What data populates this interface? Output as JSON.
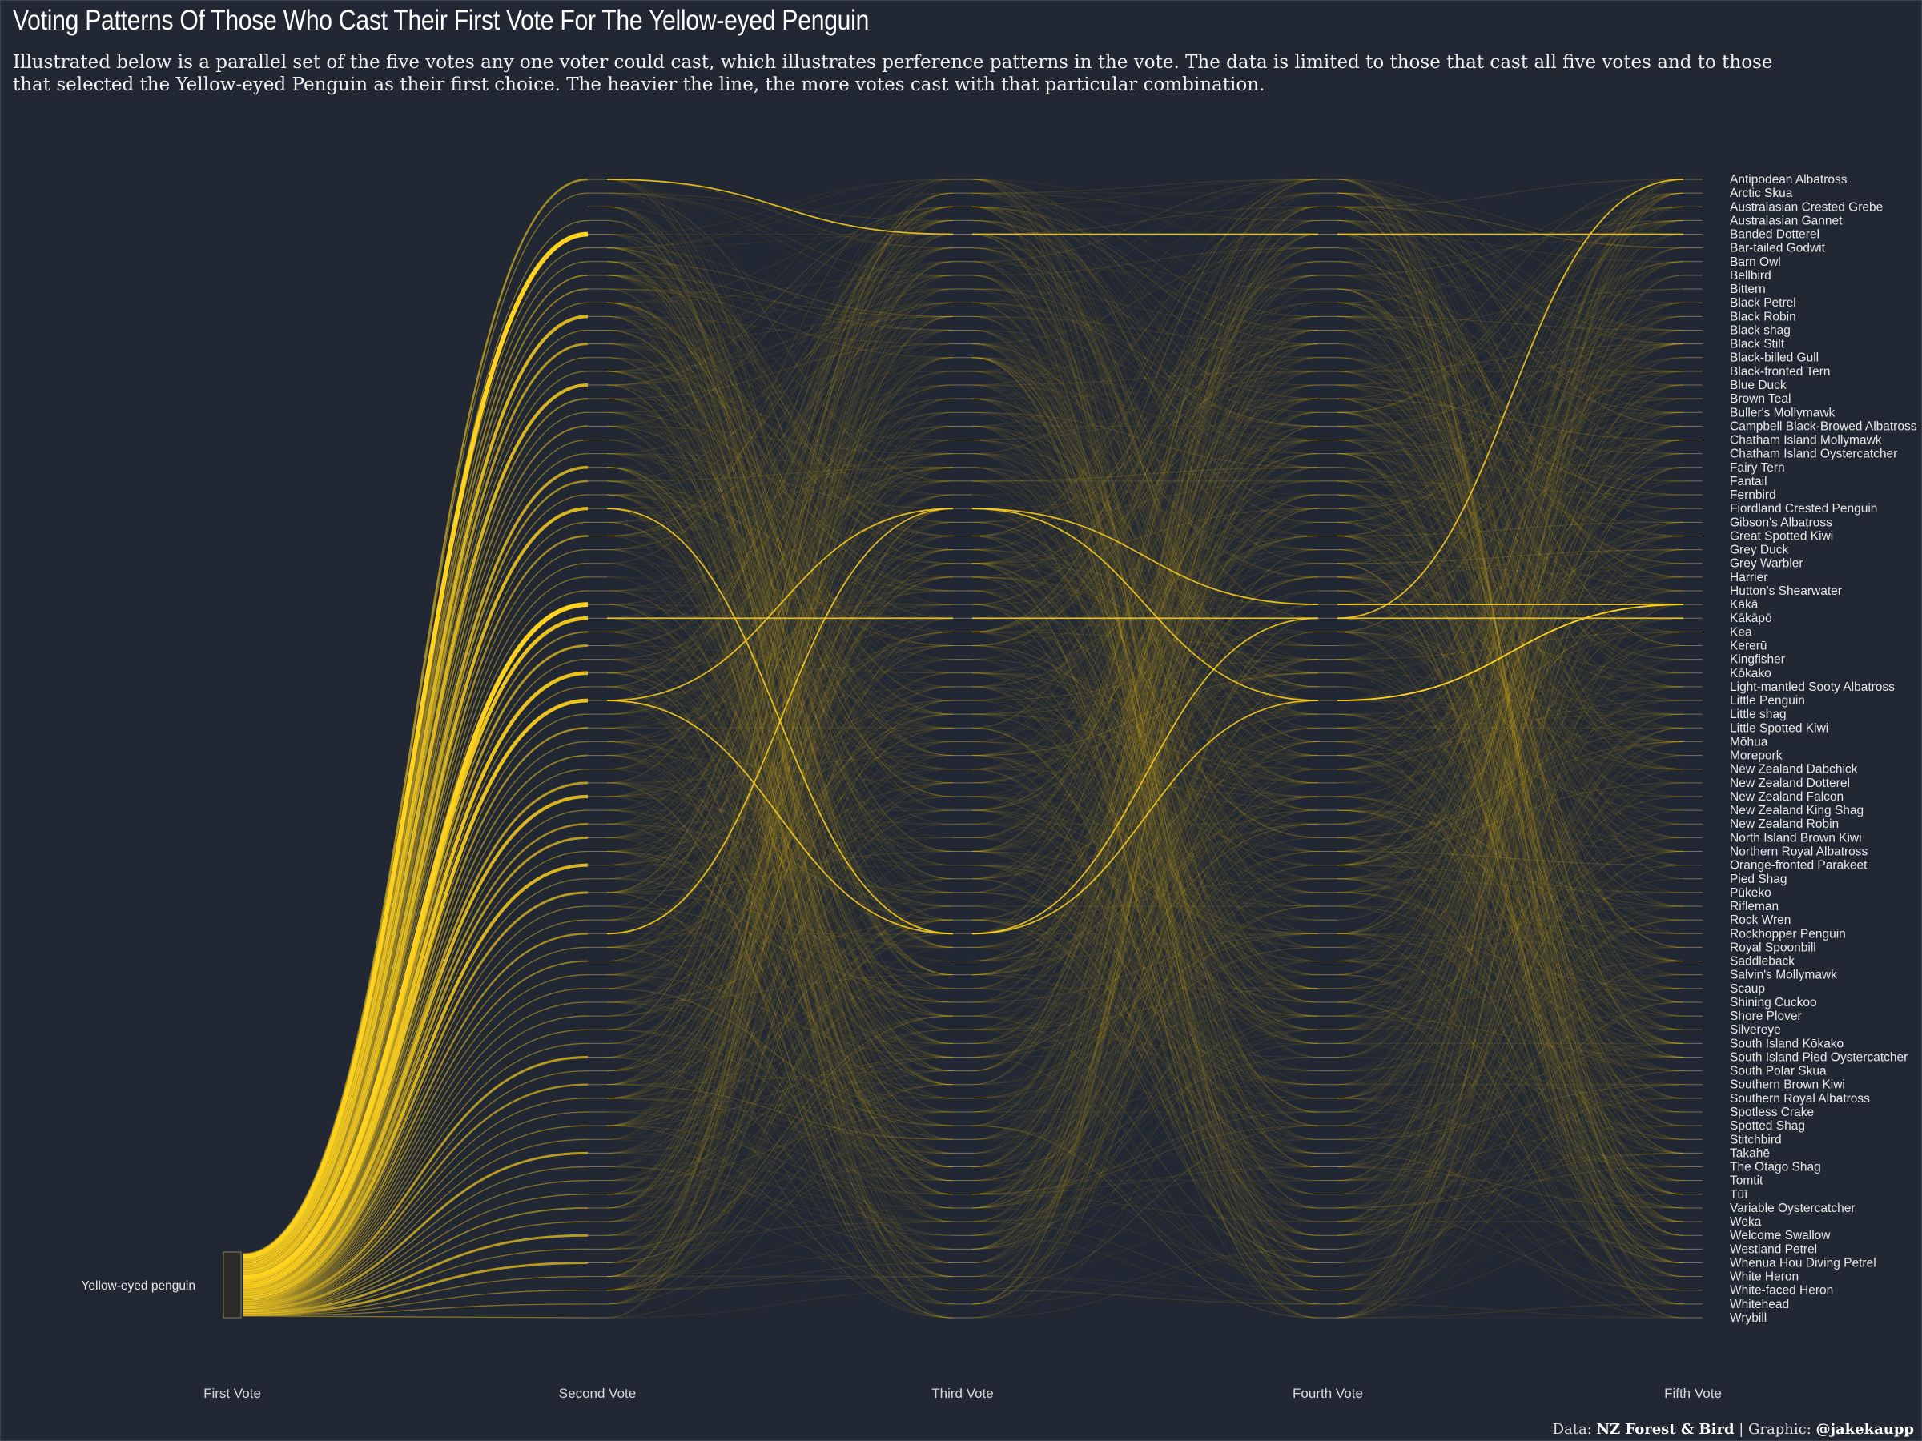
{
  "title": "Voting Patterns Of Those Who Cast Their First Vote For The Yellow-eyed Penguin",
  "subtitle": "Illustrated below is a parallel set of the five votes any one voter could cast, which illustrates perference patterns in the vote. The data is limited to those that cast all five votes and to those that selected the Yellow-eyed Penguin as their first choice. The heavier the line, the more votes cast with that particular combination.",
  "caption": {
    "data_prefix": "Data: ",
    "data_source": "NZ Forest & Bird",
    "separator": " | Graphic: ",
    "author": "@jakekaupp"
  },
  "colors": {
    "background": "#222833",
    "flow": "#f5c518",
    "flow_strong": "#ffd21f"
  },
  "chart_data": {
    "type": "parallel-sets",
    "title": "Voting Patterns Of Those Who Cast Their First Vote For The Yellow-eyed Penguin",
    "axes": [
      "First Vote",
      "Second Vote",
      "Third Vote",
      "Fourth Vote",
      "Fifth Vote"
    ],
    "first_vote_category": "Yellow-eyed penguin",
    "categories": [
      "Antipodean Albatross",
      "Arctic Skua",
      "Australasian Crested Grebe",
      "Australasian Gannet",
      "Banded Dotterel",
      "Bar-tailed Godwit",
      "Barn Owl",
      "Bellbird",
      "Bittern",
      "Black Petrel",
      "Black Robin",
      "Black shag",
      "Black Stilt",
      "Black-billed Gull",
      "Black-fronted Tern",
      "Blue Duck",
      "Brown Teal",
      "Buller's Mollymawk",
      "Campbell Black-Browed Albatross",
      "Chatham Island Mollymawk",
      "Chatham Island Oystercatcher",
      "Fairy Tern",
      "Fantail",
      "Fernbird",
      "Fiordland Crested Penguin",
      "Gibson's Albatross",
      "Great Spotted Kiwi",
      "Grey Duck",
      "Grey Warbler",
      "Harrier",
      "Hutton's Shearwater",
      "Kākā",
      "Kākāpō",
      "Kea",
      "Kererū",
      "Kingfisher",
      "Kōkako",
      "Light-mantled Sooty Albatross",
      "Little Penguin",
      "Little shag",
      "Little Spotted Kiwi",
      "Mōhua",
      "Morepork",
      "New Zealand Dabchick",
      "New Zealand Dotterel",
      "New Zealand Falcon",
      "New Zealand King Shag",
      "New Zealand Robin",
      "North Island Brown Kiwi",
      "Northern Royal Albatross",
      "Orange-fronted Parakeet",
      "Pied Shag",
      "Pūkeko",
      "Rifleman",
      "Rock Wren",
      "Rockhopper Penguin",
      "Royal Spoonbill",
      "Saddleback",
      "Salvin's Mollymawk",
      "Scaup",
      "Shining Cuckoo",
      "Shore Plover",
      "Silvereye",
      "South Island Kōkako",
      "South Island Pied Oystercatcher",
      "South Polar Skua",
      "Southern Brown Kiwi",
      "Southern Royal Albatross",
      "Spotless Crake",
      "Spotted Shag",
      "Stitchbird",
      "Takahē",
      "The Otago Shag",
      "Tomtit",
      "Tūī",
      "Variable Oystercatcher",
      "Weka",
      "Welcome Swallow",
      "Westland Petrel",
      "Whenua Hou Diving Petrel",
      "White Heron",
      "White-faced Heron",
      "Whitehead",
      "Wrybill"
    ],
    "second_vote_weights": [
      3,
      1,
      0,
      1,
      9,
      1,
      1,
      2,
      2,
      1,
      6,
      1,
      4,
      1,
      1,
      6,
      2,
      1,
      2,
      1,
      1,
      5,
      3,
      1,
      6,
      1,
      3,
      1,
      1,
      1,
      1,
      9,
      7,
      2,
      4,
      1,
      7,
      1,
      7,
      1,
      3,
      1,
      2,
      1,
      4,
      6,
      1,
      3,
      4,
      1,
      6,
      1,
      4,
      1,
      1,
      3,
      1,
      2,
      1,
      1,
      1,
      1,
      1,
      1,
      4,
      1,
      3,
      1,
      1,
      1,
      1,
      4,
      1,
      1,
      1,
      2,
      1,
      4,
      1,
      4,
      1,
      1,
      1,
      1
    ],
    "highlighted_paths": [
      [
        "Yellow-eyed penguin",
        "Antipodean Albatross",
        "Banded Dotterel",
        "Banded Dotterel",
        "Banded Dotterel"
      ],
      [
        "Yellow-eyed penguin",
        "Fiordland Crested Penguin",
        "Rockhopper Penguin",
        "Little Penguin",
        "Kākā"
      ],
      [
        "Yellow-eyed penguin",
        "Little Penguin",
        "Fiordland Crested Penguin",
        "Kākā",
        "Kākā"
      ],
      [
        "Yellow-eyed penguin",
        "Rockhopper Penguin",
        "Fiordland Crested Penguin",
        "Little Penguin",
        "Kākā"
      ],
      [
        "Yellow-eyed penguin",
        "Little Penguin",
        "Rockhopper Penguin",
        "Kākāpō",
        "Kākāpō"
      ],
      [
        "Yellow-eyed penguin",
        "Kākāpō",
        "Kākāpō",
        "Kākāpō",
        "Antipodean Albatross"
      ]
    ],
    "encoding": "line weight = number of votes with that combination"
  }
}
